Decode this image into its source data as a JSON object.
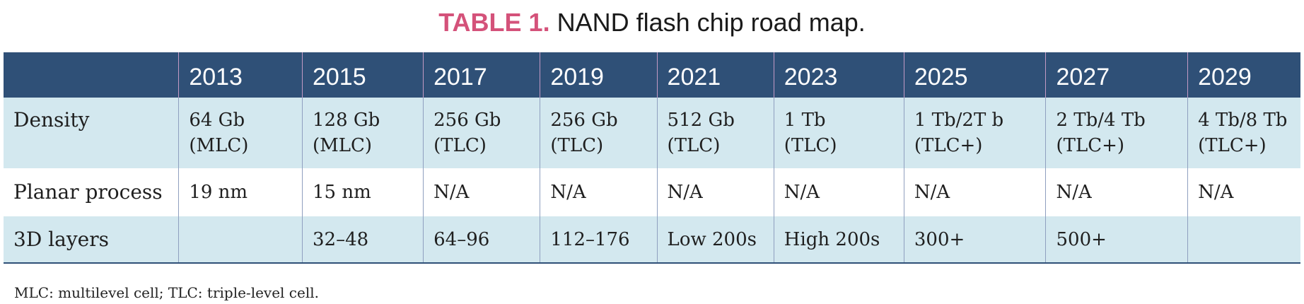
{
  "caption": {
    "label": "TABLE 1.",
    "text": " NAND flash chip road map."
  },
  "table": {
    "years": [
      "",
      "2013",
      "2015",
      "2017",
      "2019",
      "2021",
      "2023",
      "2025",
      "2027",
      "2029"
    ],
    "density": {
      "label": "Density",
      "cells": [
        [
          "64 Gb",
          "(MLC)"
        ],
        [
          "128 Gb",
          "(MLC)"
        ],
        [
          "256 Gb",
          "(TLC)"
        ],
        [
          "256 Gb",
          "(TLC)"
        ],
        [
          "512 Gb",
          "(TLC)"
        ],
        [
          "1 Tb",
          "(TLC)"
        ],
        [
          "1 Tb/2T b",
          "(TLC+)"
        ],
        [
          "2 Tb/4 Tb",
          "(TLC+)"
        ],
        [
          "4 Tb/8 Tb",
          "(TLC+)"
        ]
      ]
    },
    "planar": {
      "label": "Planar process",
      "cells": [
        "19 nm",
        "15 nm",
        "N/A",
        "N/A",
        "N/A",
        "N/A",
        "N/A",
        "N/A",
        "N/A"
      ]
    },
    "layers": {
      "label": "3D layers",
      "cells": [
        "",
        "32–48",
        "64–96",
        "112–176",
        "Low 200s",
        "High 200s",
        "300+",
        "500+",
        ""
      ]
    }
  },
  "footnote": "MLC: multilevel cell; TLC: triple-level cell."
}
